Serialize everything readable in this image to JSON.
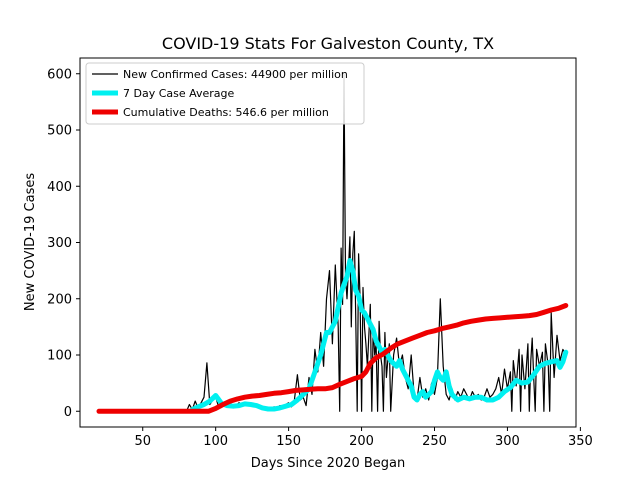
{
  "chart_data": {
    "type": "line",
    "title": "COVID-19 Stats For Galveston County, TX",
    "xlabel": "Days Since 2020 Began",
    "ylabel": "New COVID-19 Cases",
    "xlim": [
      7,
      347
    ],
    "ylim": [
      -28,
      628
    ],
    "xticks": [
      50,
      100,
      150,
      200,
      250,
      300,
      350
    ],
    "yticks": [
      0,
      100,
      200,
      300,
      400,
      500,
      600
    ],
    "grid": false,
    "legend_position": "top-left",
    "series": [
      {
        "name": "New Confirmed Cases: 44900 per million",
        "color": "#000000",
        "style": "thin",
        "points": [
          [
            20,
            0
          ],
          [
            80,
            0
          ],
          [
            82,
            12
          ],
          [
            84,
            3
          ],
          [
            86,
            18
          ],
          [
            88,
            5
          ],
          [
            90,
            15
          ],
          [
            92,
            25
          ],
          [
            94,
            86
          ],
          [
            96,
            12
          ],
          [
            98,
            20
          ],
          [
            100,
            25
          ],
          [
            102,
            8
          ],
          [
            104,
            15
          ],
          [
            106,
            10
          ],
          [
            108,
            12
          ],
          [
            110,
            15
          ],
          [
            112,
            8
          ],
          [
            114,
            10
          ],
          [
            116,
            15
          ],
          [
            118,
            12
          ],
          [
            120,
            15
          ],
          [
            122,
            10
          ],
          [
            124,
            12
          ],
          [
            126,
            8
          ],
          [
            128,
            10
          ],
          [
            130,
            5
          ],
          [
            132,
            8
          ],
          [
            134,
            3
          ],
          [
            136,
            5
          ],
          [
            138,
            3
          ],
          [
            140,
            8
          ],
          [
            142,
            5
          ],
          [
            144,
            10
          ],
          [
            146,
            8
          ],
          [
            148,
            12
          ],
          [
            150,
            15
          ],
          [
            152,
            8
          ],
          [
            154,
            20
          ],
          [
            156,
            65
          ],
          [
            158,
            20
          ],
          [
            160,
            25
          ],
          [
            162,
            10
          ],
          [
            164,
            60
          ],
          [
            166,
            30
          ],
          [
            168,
            110
          ],
          [
            170,
            70
          ],
          [
            172,
            140
          ],
          [
            174,
            80
          ],
          [
            176,
            200
          ],
          [
            178,
            250
          ],
          [
            180,
            120
          ],
          [
            182,
            260
          ],
          [
            184,
            150
          ],
          [
            185,
            0
          ],
          [
            186,
            290
          ],
          [
            187,
            190
          ],
          [
            188,
            600
          ],
          [
            189,
            240
          ],
          [
            190,
            200
          ],
          [
            191,
            250
          ],
          [
            192,
            310
          ],
          [
            193,
            150
          ],
          [
            194,
            280
          ],
          [
            195,
            320
          ],
          [
            196,
            170
          ],
          [
            197,
            0
          ],
          [
            198,
            280
          ],
          [
            199,
            200
          ],
          [
            200,
            0
          ],
          [
            201,
            220
          ],
          [
            202,
            150
          ],
          [
            203,
            120
          ],
          [
            204,
            80
          ],
          [
            206,
            190
          ],
          [
            207,
            0
          ],
          [
            208,
            150
          ],
          [
            209,
            100
          ],
          [
            210,
            120
          ],
          [
            211,
            0
          ],
          [
            212,
            160
          ],
          [
            213,
            100
          ],
          [
            214,
            80
          ],
          [
            215,
            0
          ],
          [
            216,
            140
          ],
          [
            217,
            60
          ],
          [
            218,
            90
          ],
          [
            219,
            120
          ],
          [
            220,
            0
          ],
          [
            222,
            100
          ],
          [
            224,
            130
          ],
          [
            226,
            80
          ],
          [
            228,
            100
          ],
          [
            230,
            60
          ],
          [
            232,
            40
          ],
          [
            234,
            100
          ],
          [
            236,
            30
          ],
          [
            238,
            20
          ],
          [
            240,
            60
          ],
          [
            242,
            25
          ],
          [
            244,
            40
          ],
          [
            246,
            20
          ],
          [
            248,
            50
          ],
          [
            250,
            30
          ],
          [
            252,
            60
          ],
          [
            254,
            200
          ],
          [
            256,
            80
          ],
          [
            258,
            30
          ],
          [
            260,
            20
          ],
          [
            262,
            40
          ],
          [
            264,
            20
          ],
          [
            266,
            35
          ],
          [
            268,
            25
          ],
          [
            270,
            40
          ],
          [
            272,
            30
          ],
          [
            274,
            20
          ],
          [
            276,
            35
          ],
          [
            278,
            25
          ],
          [
            280,
            30
          ],
          [
            282,
            20
          ],
          [
            284,
            25
          ],
          [
            286,
            40
          ],
          [
            288,
            25
          ],
          [
            290,
            30
          ],
          [
            292,
            40
          ],
          [
            294,
            60
          ],
          [
            296,
            30
          ],
          [
            298,
            75
          ],
          [
            300,
            40
          ],
          [
            302,
            70
          ],
          [
            303,
            0
          ],
          [
            304,
            90
          ],
          [
            306,
            45
          ],
          [
            308,
            110
          ],
          [
            309,
            0
          ],
          [
            310,
            100
          ],
          [
            312,
            40
          ],
          [
            314,
            120
          ],
          [
            315,
            0
          ],
          [
            316,
            90
          ],
          [
            317,
            130
          ],
          [
            318,
            60
          ],
          [
            319,
            0
          ],
          [
            320,
            110
          ],
          [
            322,
            80
          ],
          [
            324,
            105
          ],
          [
            325,
            0
          ],
          [
            326,
            120
          ],
          [
            328,
            80
          ],
          [
            329,
            0
          ],
          [
            330,
            175
          ],
          [
            332,
            60
          ],
          [
            334,
            135
          ],
          [
            336,
            90
          ],
          [
            338,
            110
          ],
          [
            340,
            100
          ]
        ]
      },
      {
        "name": "7 Day Case Average",
        "color": "#00f0f0",
        "style": "thick",
        "points": [
          [
            84,
            3
          ],
          [
            88,
            8
          ],
          [
            92,
            12
          ],
          [
            96,
            18
          ],
          [
            100,
            28
          ],
          [
            104,
            14
          ],
          [
            108,
            10
          ],
          [
            112,
            9
          ],
          [
            116,
            10
          ],
          [
            120,
            13
          ],
          [
            124,
            12
          ],
          [
            128,
            10
          ],
          [
            132,
            6
          ],
          [
            136,
            4
          ],
          [
            140,
            4
          ],
          [
            144,
            6
          ],
          [
            148,
            9
          ],
          [
            152,
            12
          ],
          [
            156,
            20
          ],
          [
            160,
            30
          ],
          [
            164,
            40
          ],
          [
            168,
            70
          ],
          [
            172,
            100
          ],
          [
            176,
            140
          ],
          [
            178,
            140
          ],
          [
            180,
            150
          ],
          [
            182,
            160
          ],
          [
            184,
            185
          ],
          [
            186,
            210
          ],
          [
            188,
            225
          ],
          [
            190,
            240
          ],
          [
            192,
            268
          ],
          [
            194,
            250
          ],
          [
            196,
            215
          ],
          [
            198,
            205
          ],
          [
            200,
            180
          ],
          [
            202,
            175
          ],
          [
            204,
            165
          ],
          [
            206,
            155
          ],
          [
            208,
            145
          ],
          [
            210,
            125
          ],
          [
            212,
            115
          ],
          [
            214,
            105
          ],
          [
            216,
            110
          ],
          [
            218,
            100
          ],
          [
            220,
            90
          ],
          [
            222,
            85
          ],
          [
            224,
            80
          ],
          [
            226,
            90
          ],
          [
            228,
            75
          ],
          [
            230,
            65
          ],
          [
            232,
            55
          ],
          [
            234,
            45
          ],
          [
            236,
            25
          ],
          [
            238,
            20
          ],
          [
            240,
            30
          ],
          [
            242,
            35
          ],
          [
            244,
            25
          ],
          [
            246,
            30
          ],
          [
            248,
            35
          ],
          [
            250,
            55
          ],
          [
            252,
            70
          ],
          [
            254,
            60
          ],
          [
            256,
            55
          ],
          [
            258,
            70
          ],
          [
            260,
            45
          ],
          [
            262,
            30
          ],
          [
            264,
            25
          ],
          [
            266,
            20
          ],
          [
            270,
            25
          ],
          [
            274,
            22
          ],
          [
            278,
            25
          ],
          [
            282,
            25
          ],
          [
            286,
            20
          ],
          [
            290,
            20
          ],
          [
            294,
            25
          ],
          [
            298,
            35
          ],
          [
            302,
            42
          ],
          [
            306,
            55
          ],
          [
            310,
            50
          ],
          [
            314,
            52
          ],
          [
            318,
            65
          ],
          [
            322,
            80
          ],
          [
            326,
            85
          ],
          [
            330,
            88
          ],
          [
            334,
            90
          ],
          [
            336,
            78
          ],
          [
            338,
            88
          ],
          [
            340,
            105
          ]
        ]
      },
      {
        "name": "Cumulative Deaths: 546.6 per million",
        "color": "#ee0000",
        "style": "thick",
        "points": [
          [
            20,
            0
          ],
          [
            95,
            0
          ],
          [
            100,
            5
          ],
          [
            105,
            12
          ],
          [
            110,
            18
          ],
          [
            115,
            22
          ],
          [
            120,
            25
          ],
          [
            125,
            27
          ],
          [
            130,
            28
          ],
          [
            135,
            30
          ],
          [
            140,
            32
          ],
          [
            145,
            33
          ],
          [
            150,
            35
          ],
          [
            155,
            37
          ],
          [
            160,
            38
          ],
          [
            165,
            39
          ],
          [
            170,
            40
          ],
          [
            175,
            40
          ],
          [
            180,
            42
          ],
          [
            185,
            48
          ],
          [
            190,
            53
          ],
          [
            195,
            58
          ],
          [
            200,
            62
          ],
          [
            203,
            70
          ],
          [
            206,
            85
          ],
          [
            210,
            95
          ],
          [
            215,
            102
          ],
          [
            220,
            112
          ],
          [
            225,
            120
          ],
          [
            230,
            125
          ],
          [
            235,
            130
          ],
          [
            240,
            135
          ],
          [
            245,
            140
          ],
          [
            250,
            143
          ],
          [
            255,
            147
          ],
          [
            260,
            150
          ],
          [
            265,
            153
          ],
          [
            270,
            157
          ],
          [
            275,
            160
          ],
          [
            280,
            162
          ],
          [
            285,
            164
          ],
          [
            290,
            165
          ],
          [
            295,
            166
          ],
          [
            300,
            167
          ],
          [
            305,
            168
          ],
          [
            310,
            169
          ],
          [
            315,
            170
          ],
          [
            320,
            172
          ],
          [
            325,
            176
          ],
          [
            330,
            180
          ],
          [
            335,
            183
          ],
          [
            340,
            188
          ]
        ]
      }
    ]
  }
}
